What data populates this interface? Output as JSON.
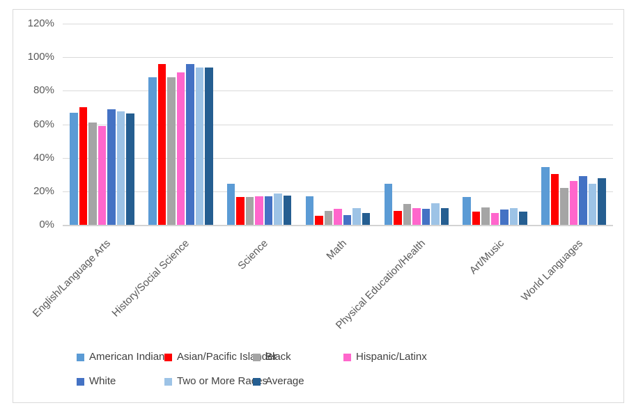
{
  "chart_data": {
    "type": "bar",
    "title": "",
    "categories": [
      "English/Language Arts",
      "History/Social Science",
      "Science",
      "Math",
      "Physical Education/Health",
      "Art/Music",
      "World Languages"
    ],
    "series": [
      {
        "name": "American Indian",
        "color": "#5B9BD5",
        "values": [
          67,
          88,
          24.5,
          17,
          24.5,
          16.5,
          34.5
        ]
      },
      {
        "name": "Asian/Pacific Islander",
        "color": "#FF0000",
        "values": [
          70,
          96,
          16.5,
          5.5,
          8.5,
          8,
          30.5
        ]
      },
      {
        "name": "Black",
        "color": "#A5A5A5",
        "values": [
          61,
          88,
          16.5,
          8.5,
          12.5,
          10.5,
          22
        ]
      },
      {
        "name": "Hispanic/Latinx",
        "color": "#FF66CC",
        "values": [
          59,
          91,
          17,
          9.5,
          10,
          7,
          26
        ]
      },
      {
        "name": "White",
        "color": "#4472C4",
        "values": [
          69,
          96,
          17,
          6,
          9.5,
          9,
          29
        ]
      },
      {
        "name": "Two or More Races",
        "color": "#9DC3E6",
        "values": [
          67.5,
          94,
          18.5,
          10,
          13,
          10,
          24.5
        ]
      },
      {
        "name": "Average",
        "color": "#255E91",
        "values": [
          66.5,
          94,
          17.5,
          7,
          10,
          8,
          28
        ]
      }
    ],
    "y_axis": {
      "unit": "%",
      "min": 0,
      "max": 120,
      "step": 20,
      "tick_labels": [
        "0%",
        "20%",
        "40%",
        "60%",
        "80%",
        "100%",
        "120%"
      ]
    },
    "grid": true,
    "legend_position": "bottom",
    "legend_rows": [
      [
        "American Indian",
        "Asian/Pacific Islander",
        "Black",
        "Hispanic/Latinx"
      ],
      [
        "White",
        "Two or More Races",
        "Average"
      ]
    ]
  },
  "colors": {
    "background": "#FFFFFF",
    "gridline": "#D9D9D9",
    "frame_border": "#D9D9D9",
    "axis_text": "#595959",
    "legend_text": "#404040"
  }
}
